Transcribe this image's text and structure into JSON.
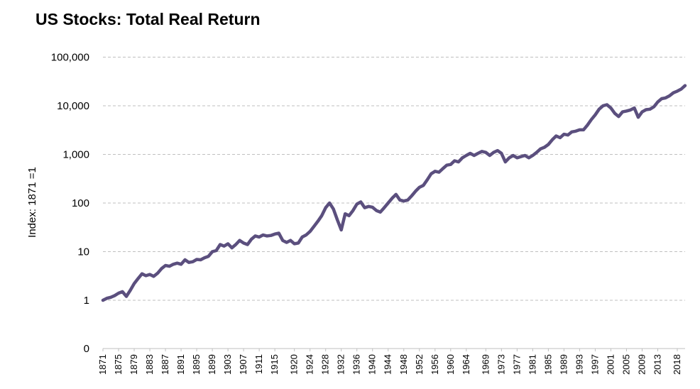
{
  "chart_data": {
    "type": "line",
    "title": "US Stocks: Total Real Return",
    "xlabel": "",
    "ylabel": "Index: 1871 =1",
    "y_scale": "log",
    "y_ticks": [
      "0",
      "1",
      "10",
      "100",
      "1,000",
      "10,000",
      "100,000"
    ],
    "x_tick_labels": [
      "1871",
      "1875",
      "1879",
      "1883",
      "1887",
      "1891",
      "1895",
      "1899",
      "1903",
      "1907",
      "1911",
      "1915",
      "1920",
      "1924",
      "1928",
      "1932",
      "1936",
      "1940",
      "1944",
      "1948",
      "1952",
      "1956",
      "1960",
      "1964",
      "1969",
      "1973",
      "1977",
      "1981",
      "1985",
      "1989",
      "1993",
      "1997",
      "2001",
      "2005",
      "2009",
      "2013",
      "2018"
    ],
    "xlim": [
      1871,
      2020
    ],
    "grid": true,
    "legend": "none",
    "colors": {
      "series": "#5b4f7e"
    },
    "series": [
      {
        "x": [
          1871,
          1872,
          1873,
          1874,
          1875,
          1876,
          1877,
          1878,
          1879,
          1880,
          1881,
          1882,
          1883,
          1884,
          1885,
          1886,
          1887,
          1888,
          1889,
          1890,
          1891,
          1892,
          1893,
          1894,
          1895,
          1896,
          1897,
          1898,
          1899,
          1900,
          1901,
          1902,
          1903,
          1904,
          1905,
          1906,
          1907,
          1908,
          1909,
          1910,
          1911,
          1912,
          1913,
          1914,
          1915,
          1916,
          1917,
          1918,
          1919,
          1920,
          1921,
          1922,
          1923,
          1924,
          1925,
          1926,
          1927,
          1928,
          1929,
          1930,
          1931,
          1932,
          1933,
          1934,
          1935,
          1936,
          1937,
          1938,
          1939,
          1940,
          1941,
          1942,
          1943,
          1944,
          1945,
          1946,
          1947,
          1948,
          1949,
          1950,
          1951,
          1952,
          1953,
          1954,
          1955,
          1956,
          1957,
          1958,
          1959,
          1960,
          1961,
          1962,
          1963,
          1964,
          1965,
          1966,
          1967,
          1968,
          1969,
          1970,
          1971,
          1972,
          1973,
          1974,
          1975,
          1976,
          1977,
          1978,
          1979,
          1980,
          1981,
          1982,
          1983,
          1984,
          1985,
          1986,
          1987,
          1988,
          1989,
          1990,
          1991,
          1992,
          1993,
          1994,
          1995,
          1996,
          1997,
          1998,
          1999,
          2000,
          2001,
          2002,
          2003,
          2004,
          2005,
          2006,
          2007,
          2008,
          2009,
          2010,
          2011,
          2012,
          2013,
          2014,
          2015,
          2016,
          2017,
          2018,
          2019,
          2020
        ],
        "values": [
          1.0,
          1.1,
          1.15,
          1.25,
          1.4,
          1.5,
          1.2,
          1.6,
          2.2,
          2.8,
          3.5,
          3.2,
          3.4,
          3.1,
          3.6,
          4.5,
          5.2,
          5.0,
          5.5,
          5.8,
          5.5,
          6.8,
          6.0,
          6.2,
          6.9,
          6.8,
          7.5,
          8.0,
          10.0,
          10.5,
          14.0,
          13.0,
          14.5,
          12.0,
          14.0,
          17.0,
          15.0,
          14.0,
          18.0,
          21.0,
          20.0,
          22.0,
          21.0,
          21.5,
          23.0,
          24.0,
          17.0,
          15.5,
          17.0,
          14.5,
          15.0,
          20.0,
          22.0,
          26.0,
          33.0,
          42.0,
          55.0,
          80.0,
          100.0,
          75.0,
          45.0,
          28.0,
          60.0,
          55.0,
          70.0,
          95.0,
          105.0,
          80.0,
          85.0,
          82.0,
          70.0,
          65.0,
          80.0,
          100.0,
          125.0,
          150.0,
          115.0,
          110.0,
          115.0,
          140.0,
          175.0,
          210.0,
          230.0,
          300.0,
          400.0,
          450.0,
          430.0,
          510.0,
          600.0,
          620.0,
          740.0,
          700.0,
          850.0,
          950.0,
          1050.0,
          950.0,
          1050.0,
          1150.0,
          1100.0,
          950.0,
          1100.0,
          1200.0,
          1050.0,
          700.0,
          850.0,
          950.0,
          850.0,
          900.0,
          950.0,
          850.0,
          950.0,
          1100.0,
          1300.0,
          1400.0,
          1600.0,
          2000.0,
          2400.0,
          2200.0,
          2600.0,
          2500.0,
          2900.0,
          3000.0,
          3200.0,
          3200.0,
          4000.0,
          5200.0,
          6500.0,
          8500.0,
          10000.0,
          10500.0,
          9000.0,
          7000.0,
          6000.0,
          7500.0,
          7800.0,
          8200.0,
          9000.0,
          5800.0,
          7500.0,
          8300.0,
          8500.0,
          9500.0,
          12000.0,
          14000.0,
          14500.0,
          16000.0,
          18500.0,
          20000.0,
          22000.0,
          26000.0
        ]
      }
    ]
  }
}
